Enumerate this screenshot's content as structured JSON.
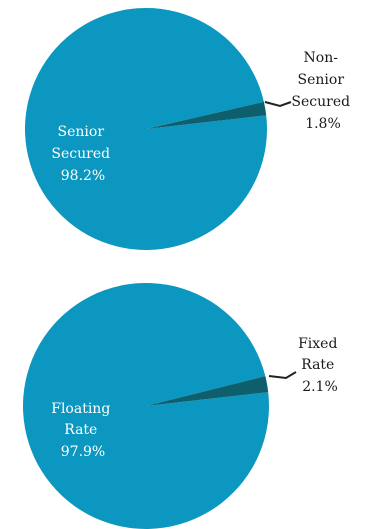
{
  "colors": {
    "major": "#0b97bf",
    "minor": "#0d5f6e",
    "leader": "#222222",
    "inside_text": "#ffffff",
    "outside_text": "#1a1a1a"
  },
  "chart_data": [
    {
      "type": "pie",
      "slices": [
        {
          "label": "Senior Secured",
          "value": 98.2,
          "display": [
            "Senior",
            "Secured",
            "98.2%"
          ]
        },
        {
          "label": "Non-Senior Secured",
          "value": 1.8,
          "display": [
            "Non-",
            "Senior",
            "Secured",
            "1.8%"
          ]
        }
      ],
      "legend": "none"
    },
    {
      "type": "pie",
      "slices": [
        {
          "label": "Floating Rate",
          "value": 97.9,
          "display": [
            "Floating",
            "Rate",
            "97.9%"
          ]
        },
        {
          "label": "Fixed Rate",
          "value": 2.1,
          "display": [
            "Fixed",
            "Rate",
            "2.1%"
          ]
        }
      ],
      "legend": "none"
    }
  ]
}
